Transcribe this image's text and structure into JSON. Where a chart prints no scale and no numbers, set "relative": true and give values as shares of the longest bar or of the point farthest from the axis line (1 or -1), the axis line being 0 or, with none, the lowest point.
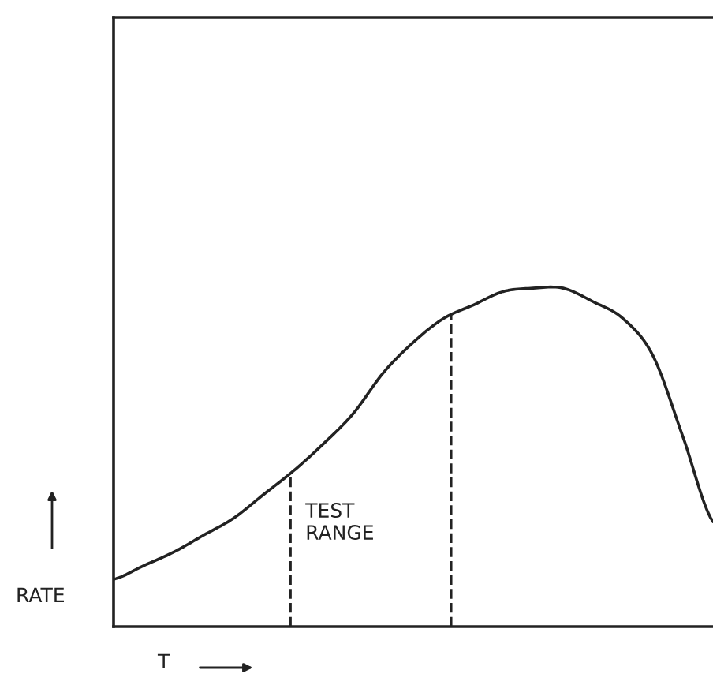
{
  "chart_data": {
    "type": "line",
    "relative": true,
    "xlabel": "T",
    "ylabel": "RATE",
    "categories": [
      null,
      null,
      null,
      null,
      null,
      null,
      null,
      null,
      null,
      null,
      null,
      null,
      null,
      null,
      null,
      null,
      null,
      null,
      null,
      null,
      null
    ],
    "series": [
      {
        "color": "#222222",
        "values": [
          0.14,
          0.18,
          0.22,
          0.27,
          0.32,
          0.39,
          0.46,
          0.54,
          0.63,
          0.75,
          0.84,
          0.91,
          0.95,
          0.99,
          1.0,
          1.0,
          0.96,
          0.91,
          0.8,
          0.56,
          0.31
        ]
      }
    ],
    "annotations": [
      "TEST\nRANGE"
    ],
    "marker": "none",
    "line_style": "solid",
    "legend": false
  }
}
